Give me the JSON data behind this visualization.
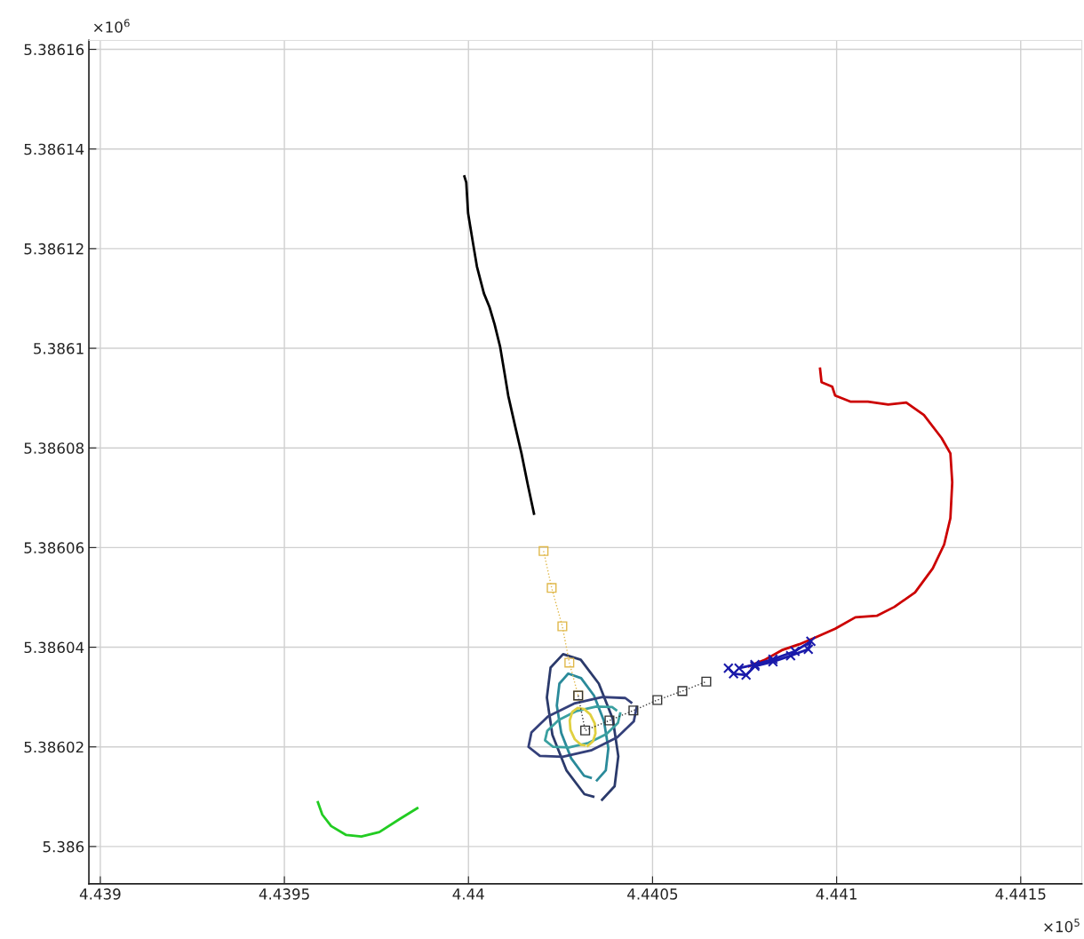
{
  "chart_data": {
    "type": "line",
    "xlim": [
      4.438969,
      4.441666
    ],
    "ylim": [
      5.3859925,
      5.3861618
    ],
    "xticks": [
      4.439,
      4.4395,
      4.44,
      4.4405,
      4.441,
      4.4415
    ],
    "yticks": [
      5.386,
      5.38602,
      5.38604,
      5.38606,
      5.38608,
      5.3861,
      5.38612,
      5.38614,
      5.38616
    ],
    "grid": true,
    "annotations": [
      "×10$^{5}$",
      "×10$^{6}$"
    ],
    "series": [
      {
        "color": "#000000",
        "marker": "none",
        "line_style": "solid",
        "x": [
          4.439989,
          4.439994,
          4.439999,
          4.440013,
          4.440023,
          4.440042,
          4.440057,
          4.440071,
          4.440086,
          4.440098,
          4.440108,
          4.440127,
          4.440144,
          4.440161,
          4.440178
        ],
        "values": [
          5.3861345,
          5.3861333,
          5.3861271,
          5.3861208,
          5.3861164,
          5.386111,
          5.3861083,
          5.3861048,
          5.3861003,
          5.386095,
          5.3860905,
          5.3860843,
          5.3860789,
          5.3860727,
          5.3860668
        ]
      },
      {
        "color": "#cc0000",
        "marker": "none",
        "line_style": "solid",
        "x": [
          4.440955,
          4.440959,
          4.440988,
          4.440996,
          4.441037,
          4.441085,
          4.44114,
          4.441189,
          4.441237,
          4.441285,
          4.441309,
          4.441314,
          4.441309,
          4.441292,
          4.441261,
          4.441213,
          4.441157,
          4.441109,
          4.441051,
          4.440996,
          4.44094,
          4.440899,
          4.440851,
          4.440803,
          4.440762
        ],
        "values": [
          5.3860959,
          5.3860932,
          5.3860923,
          5.3860905,
          5.3860893,
          5.3860893,
          5.3860887,
          5.3860891,
          5.3860866,
          5.386082,
          5.3860789,
          5.3860731,
          5.3860659,
          5.3860606,
          5.3860558,
          5.386051,
          5.3860481,
          5.3860463,
          5.386046,
          5.3860437,
          5.3860419,
          5.3860406,
          5.3860394,
          5.3860374,
          5.3860362
        ]
      },
      {
        "color": "#1a1aaa",
        "marker": "cross",
        "line_style": "solid",
        "x": [
          4.440706,
          4.44072,
          4.440754,
          4.440778,
          4.440827,
          4.440875,
          4.440923,
          4.44093,
          4.440887,
          4.440827,
          4.440778,
          4.440735
        ],
        "values": [
          5.3860358,
          5.3860347,
          5.3860344,
          5.3860362,
          5.3860371,
          5.3860383,
          5.3860396,
          5.3860412,
          5.3860392,
          5.3860376,
          5.3860365,
          5.3860358
        ]
      },
      {
        "color": "#22cc22",
        "marker": "none",
        "line_style": "solid",
        "x": [
          4.439591,
          4.439603,
          4.439627,
          4.439668,
          4.439709,
          4.439758,
          4.439813,
          4.439861
        ],
        "values": [
          5.3860089,
          5.3860064,
          5.3860041,
          5.3860023,
          5.386002,
          5.3860029,
          5.3860055,
          5.3860077
        ]
      },
      {
        "color": "#2b3a6b",
        "marker": "none",
        "line_style": "solid",
        "x": [
          4.440363,
          4.440397,
          4.440407,
          4.440392,
          4.440354,
          4.440305,
          4.440257,
          4.440223,
          4.440213,
          4.440228,
          4.440266,
          4.440315,
          4.440339
        ],
        "values": [
          5.3860094,
          5.3860121,
          5.3860181,
          5.3860256,
          5.3860327,
          5.3860375,
          5.3860386,
          5.3860359,
          5.3860299,
          5.3860224,
          5.3860153,
          5.3860105,
          5.38601
        ]
      },
      {
        "color": "#2a8a9a",
        "marker": "none",
        "line_style": "solid",
        "x": [
          4.440349,
          4.440373,
          4.44038,
          4.440368,
          4.440341,
          4.440306,
          4.440271,
          4.440247,
          4.44024,
          4.440252,
          4.440279,
          4.440314,
          4.440332
        ],
        "values": [
          5.3860133,
          5.3860153,
          5.3860197,
          5.3860252,
          5.3860303,
          5.3860338,
          5.3860347,
          5.3860327,
          5.3860283,
          5.3860228,
          5.3860177,
          5.3860142,
          5.3860138
        ]
      },
      {
        "color": "#34407a",
        "marker": "none",
        "line_style": "solid",
        "x": [
          4.440457,
          4.440449,
          4.440404,
          4.440333,
          4.440256,
          4.440194,
          4.440163,
          4.440171,
          4.440216,
          4.440287,
          4.440364,
          4.440426,
          4.440442
        ],
        "values": [
          5.386028,
          5.3860251,
          5.3860219,
          5.3860193,
          5.386018,
          5.3860182,
          5.38602,
          5.3860229,
          5.3860261,
          5.3860287,
          5.38603,
          5.3860298,
          5.3860289
        ]
      },
      {
        "color": "#3aa0a0",
        "marker": "none",
        "line_style": "solid",
        "x": [
          4.440412,
          4.440406,
          4.440375,
          4.440326,
          4.440273,
          4.44023,
          4.440208,
          4.440214,
          4.440245,
          4.440294,
          4.440347,
          4.44039,
          4.440401
        ],
        "values": [
          5.3860267,
          5.3860248,
          5.3860226,
          5.3860208,
          5.3860199,
          5.38602,
          5.3860213,
          5.3860232,
          5.3860254,
          5.3860272,
          5.3860281,
          5.386028,
          5.3860274
        ]
      },
      {
        "color": "#e0d040",
        "marker": "none",
        "line_style": "solid",
        "x": [
          4.440324,
          4.440338,
          4.440345,
          4.440343,
          4.440331,
          4.440314,
          4.440296,
          4.440282,
          4.440275,
          4.440277,
          4.440289,
          4.440306,
          4.440315
        ],
        "values": [
          5.3860202,
          5.3860211,
          5.3860227,
          5.3860247,
          5.3860265,
          5.3860276,
          5.3860278,
          5.386027,
          5.3860253,
          5.3860234,
          5.3860215,
          5.3860204,
          5.3860203
        ]
      },
      {
        "color": "#e0b84a",
        "marker": "square",
        "line_style": "dotted",
        "x": [
          4.440204,
          4.440226,
          4.440255,
          4.440274,
          4.440298
        ],
        "values": [
          5.3860593,
          5.3860519,
          5.3860442,
          5.3860369,
          5.3860303
        ]
      },
      {
        "color": "#333333",
        "marker": "square",
        "line_style": "dotted",
        "x": [
          4.440298,
          4.440317,
          4.440383,
          4.440448,
          4.440513,
          4.440581,
          4.440646
        ],
        "values": [
          5.3860303,
          5.3860233,
          5.3860253,
          5.3860273,
          5.3860294,
          5.3860312,
          5.3860331
        ]
      }
    ]
  }
}
